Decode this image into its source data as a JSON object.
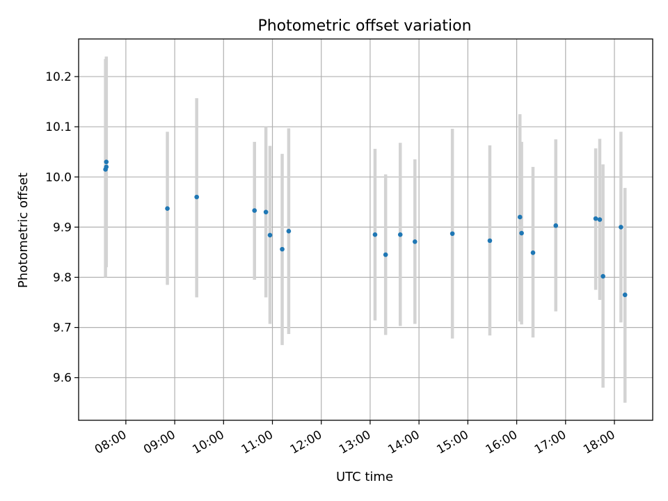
{
  "chart_data": {
    "type": "scatter",
    "title": "Photometric offset variation",
    "xlabel": "UTC time",
    "ylabel": "Photometric offset",
    "x_type": "time",
    "xlim": [
      "07:02",
      "18:47"
    ],
    "ylim": [
      9.515,
      10.275
    ],
    "grid": true,
    "colors": {
      "point": "#1f77b4",
      "error_bar": "#d3d3d3",
      "grid": "#b0b0b0"
    },
    "x_ticks": [
      "08:00",
      "09:00",
      "10:00",
      "11:00",
      "12:00",
      "13:00",
      "14:00",
      "15:00",
      "16:00",
      "17:00",
      "18:00"
    ],
    "y_ticks": [
      9.6,
      9.7,
      9.8,
      9.9,
      10.0,
      10.1,
      10.2
    ],
    "points": [
      {
        "x": "07:35",
        "y": 10.015,
        "ylow": 9.8,
        "yhigh": 10.235
      },
      {
        "x": "07:36",
        "y": 10.02,
        "ylow": 9.82,
        "yhigh": 10.24
      },
      {
        "x": "07:36",
        "y": 10.03,
        "ylow": 9.83,
        "yhigh": 10.235
      },
      {
        "x": "08:51",
        "y": 9.937,
        "ylow": 9.785,
        "yhigh": 10.09
      },
      {
        "x": "09:27",
        "y": 9.96,
        "ylow": 9.76,
        "yhigh": 10.157
      },
      {
        "x": "10:38",
        "y": 9.933,
        "ylow": 9.795,
        "yhigh": 10.07
      },
      {
        "x": "10:52",
        "y": 9.93,
        "ylow": 9.76,
        "yhigh": 10.1
      },
      {
        "x": "10:57",
        "y": 9.884,
        "ylow": 9.707,
        "yhigh": 10.062
      },
      {
        "x": "11:12",
        "y": 9.856,
        "ylow": 9.665,
        "yhigh": 10.046
      },
      {
        "x": "11:20",
        "y": 9.892,
        "ylow": 9.687,
        "yhigh": 10.097
      },
      {
        "x": "13:06",
        "y": 9.885,
        "ylow": 9.714,
        "yhigh": 10.056
      },
      {
        "x": "13:19",
        "y": 9.845,
        "ylow": 9.685,
        "yhigh": 10.005
      },
      {
        "x": "13:37",
        "y": 9.885,
        "ylow": 9.703,
        "yhigh": 10.068
      },
      {
        "x": "13:55",
        "y": 9.871,
        "ylow": 9.707,
        "yhigh": 10.035
      },
      {
        "x": "14:41",
        "y": 9.887,
        "ylow": 9.678,
        "yhigh": 10.096
      },
      {
        "x": "15:27",
        "y": 9.873,
        "ylow": 9.684,
        "yhigh": 10.063
      },
      {
        "x": "16:04",
        "y": 9.92,
        "ylow": 9.712,
        "yhigh": 10.125
      },
      {
        "x": "16:06",
        "y": 9.888,
        "ylow": 9.706,
        "yhigh": 10.07
      },
      {
        "x": "16:20",
        "y": 9.849,
        "ylow": 9.68,
        "yhigh": 10.02
      },
      {
        "x": "16:48",
        "y": 9.903,
        "ylow": 9.732,
        "yhigh": 10.075
      },
      {
        "x": "17:37",
        "y": 9.917,
        "ylow": 9.775,
        "yhigh": 10.057
      },
      {
        "x": "17:42",
        "y": 9.915,
        "ylow": 9.755,
        "yhigh": 10.076
      },
      {
        "x": "17:46",
        "y": 9.802,
        "ylow": 9.58,
        "yhigh": 10.025
      },
      {
        "x": "18:08",
        "y": 9.9,
        "ylow": 9.71,
        "yhigh": 10.09
      },
      {
        "x": "18:13",
        "y": 9.765,
        "ylow": 9.55,
        "yhigh": 9.978
      }
    ]
  }
}
